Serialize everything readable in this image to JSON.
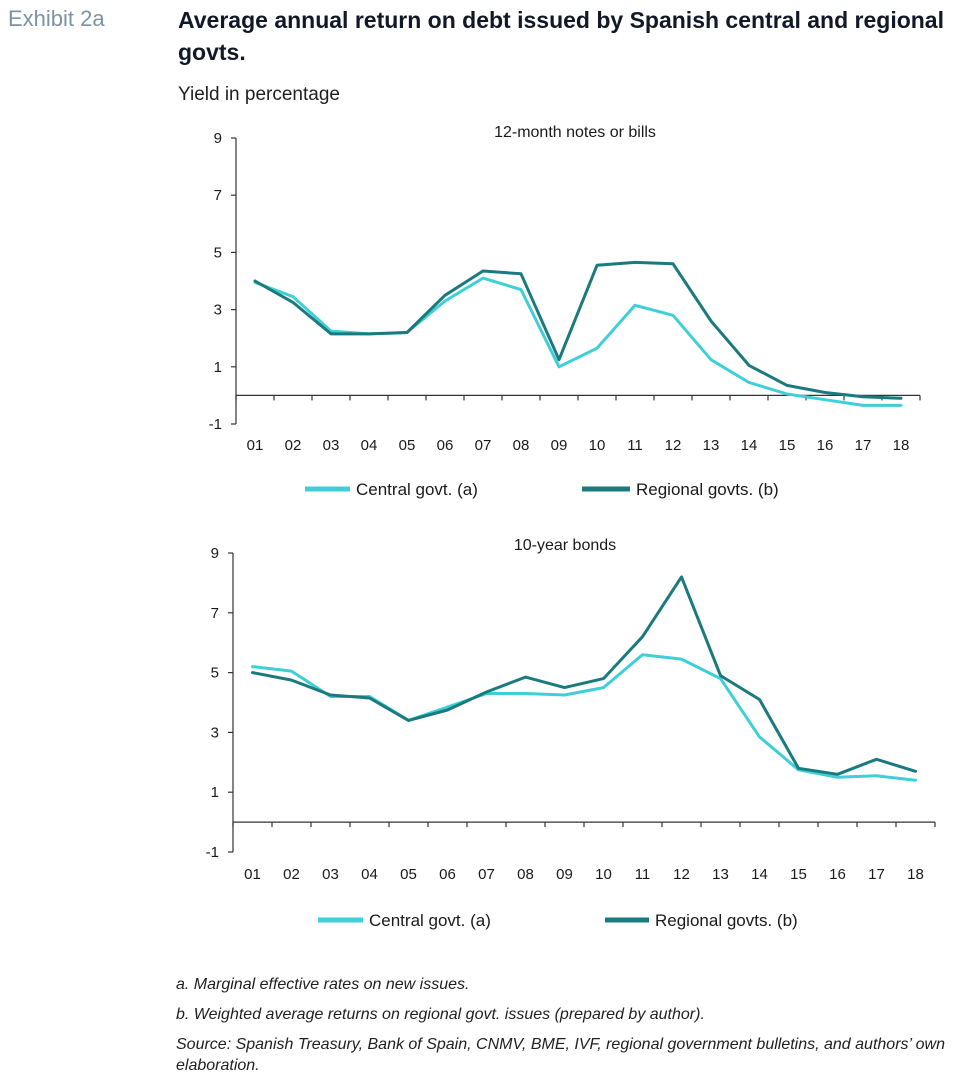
{
  "header": {
    "exhibit": "Exhibit 2a",
    "title": "Average annual return on debt issued by Spanish central and regional govts.",
    "subtitle": "Yield in percentage"
  },
  "colors": {
    "central": "#3ecfd8",
    "regional": "#1a7a7e",
    "axis": "#333333"
  },
  "chart_data": [
    {
      "type": "line",
      "title": "12-month notes or bills",
      "categories": [
        "01",
        "02",
        "03",
        "04",
        "05",
        "06",
        "07",
        "08",
        "09",
        "10",
        "11",
        "12",
        "13",
        "14",
        "15",
        "16",
        "17",
        "18"
      ],
      "ylim": [
        -1,
        9
      ],
      "yticks": [
        9,
        7,
        5,
        3,
        1,
        -1
      ],
      "grid": false,
      "legend": "bottom",
      "series": [
        {
          "name": "Central govt. (a)",
          "color": "#3ecfd8",
          "values": [
            3.95,
            3.45,
            2.25,
            2.15,
            2.2,
            3.3,
            4.1,
            3.7,
            1.0,
            1.65,
            3.15,
            2.8,
            1.25,
            0.45,
            0.05,
            -0.15,
            -0.35,
            -0.35
          ]
        },
        {
          "name": "Regional govts. (b)",
          "color": "#1a7a7e",
          "values": [
            4.0,
            3.25,
            2.15,
            2.15,
            2.2,
            3.5,
            4.35,
            4.25,
            1.25,
            4.55,
            4.65,
            4.6,
            2.6,
            1.05,
            0.35,
            0.1,
            -0.05,
            -0.1
          ]
        }
      ]
    },
    {
      "type": "line",
      "title": "10-year bonds",
      "categories": [
        "01",
        "02",
        "03",
        "04",
        "05",
        "06",
        "07",
        "08",
        "09",
        "10",
        "11",
        "12",
        "13",
        "14",
        "15",
        "16",
        "17",
        "18"
      ],
      "ylim": [
        -1,
        9
      ],
      "yticks": [
        9,
        7,
        5,
        3,
        1,
        -1
      ],
      "grid": false,
      "legend": "bottom",
      "series": [
        {
          "name": "Central govt. (a)",
          "color": "#3ecfd8",
          "values": [
            5.2,
            5.05,
            4.2,
            4.2,
            3.4,
            3.85,
            4.3,
            4.3,
            4.25,
            4.5,
            5.6,
            5.45,
            4.8,
            2.85,
            1.75,
            1.5,
            1.55,
            1.4
          ]
        },
        {
          "name": "Regional govts. (b)",
          "color": "#1a7a7e",
          "values": [
            5.0,
            4.75,
            4.25,
            4.15,
            3.4,
            3.75,
            4.35,
            4.85,
            4.5,
            4.8,
            6.2,
            8.2,
            4.9,
            4.1,
            1.8,
            1.6,
            2.1,
            1.7
          ]
        }
      ]
    }
  ],
  "notes": {
    "a": "a. Marginal effective rates on new issues.",
    "b": "b. Weighted average returns on regional govt. issues (prepared by author).",
    "source": "Source: Spanish Treasury, Bank of Spain, CNMV, BME, IVF, regional government bulletins, and authors’ own elaboration."
  }
}
